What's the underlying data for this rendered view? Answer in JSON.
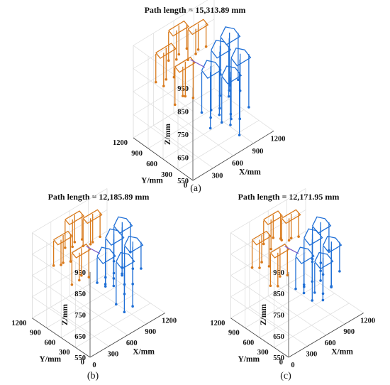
{
  "chart_data": [
    {
      "type": "3d-line",
      "panel_label": "(a)",
      "title": "Path length = 15,313.89 mm",
      "xlabel": "X/mm",
      "ylabel": "Y/mm",
      "zlabel": "Z/mm",
      "x_ticks": [
        "300",
        "600",
        "900",
        "1200"
      ],
      "y_ticks": [
        "0",
        "300",
        "600",
        "900",
        "1200"
      ],
      "z_ticks": [
        "550",
        "650",
        "750",
        "850",
        "950"
      ],
      "xlim": [
        0,
        1200
      ],
      "ylim": [
        0,
        1200
      ],
      "zlim": [
        550,
        950
      ],
      "grid": true,
      "series_colors": [
        "#d97a1c",
        "#1f6fd6"
      ],
      "path_length_mm": 15313.89
    },
    {
      "type": "3d-line",
      "panel_label": "(b)",
      "title": "Path length = 12,185.89 mm",
      "xlabel": "X/mm",
      "ylabel": "Y/mm",
      "zlabel": "Z/mm",
      "x_ticks": [
        "0",
        "300",
        "600",
        "900",
        "1200"
      ],
      "y_ticks": [
        "0",
        "300",
        "600",
        "900",
        "1200"
      ],
      "z_ticks": [
        "550",
        "650",
        "750",
        "850",
        "950"
      ],
      "xlim": [
        0,
        1200
      ],
      "ylim": [
        0,
        1200
      ],
      "zlim": [
        550,
        950
      ],
      "grid": true,
      "series_colors": [
        "#d97a1c",
        "#1f6fd6"
      ],
      "path_length_mm": 12185.89
    },
    {
      "type": "3d-line",
      "panel_label": "(c)",
      "title": "Path length = 12,171.95 mm",
      "xlabel": "X/mm",
      "ylabel": "Y/mm",
      "zlabel": "Z/mm",
      "x_ticks": [
        "0",
        "300",
        "600",
        "900",
        "1200"
      ],
      "y_ticks": [
        "0",
        "300",
        "600",
        "900",
        "1200"
      ],
      "z_ticks": [
        "550",
        "650",
        "750",
        "850",
        "950"
      ],
      "xlim": [
        0,
        1200
      ],
      "ylim": [
        0,
        1200
      ],
      "zlim": [
        550,
        950
      ],
      "grid": true,
      "series_colors": [
        "#d97a1c",
        "#1f6fd6"
      ],
      "path_length_mm": 12171.95
    }
  ]
}
